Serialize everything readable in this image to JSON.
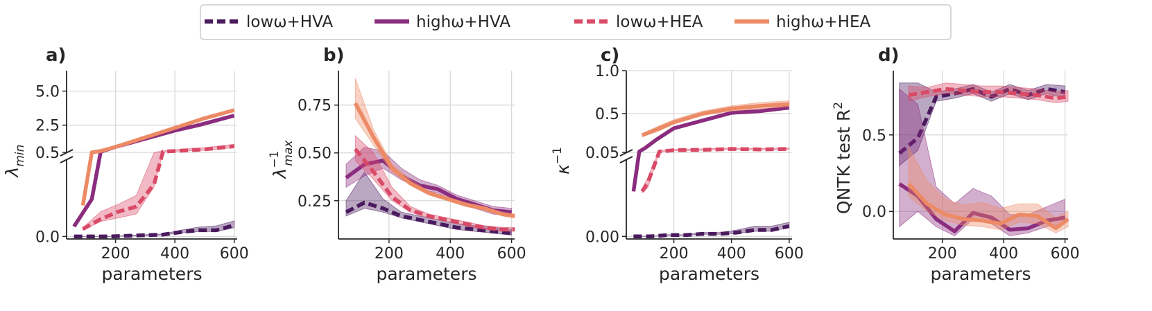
{
  "chart_data": {
    "type": "line",
    "legend": {
      "position": "top-center",
      "entries": [
        {
          "key": "lowHVA",
          "label": "lowω+HVA",
          "color": "#4a1a5e",
          "dashed": true
        },
        {
          "key": "highHVA",
          "label": "highω+HVA",
          "color": "#8b2c7e",
          "dashed": false
        },
        {
          "key": "lowHEA",
          "label": "lowω+HEA",
          "color": "#d94a67",
          "dashed": true
        },
        {
          "key": "highHEA",
          "label": "highω+HEA",
          "color": "#ec8a65",
          "dashed": false
        }
      ]
    },
    "panels": [
      {
        "id": "a",
        "panel_label": "a)",
        "xlabel": "parameters",
        "ylabel": "λ_min",
        "ylabel_main": "λ",
        "ylabel_sub": "min",
        "xlim": [
          35,
          610
        ],
        "xticks": [
          "200",
          "400",
          "600"
        ],
        "xtick_values": [
          200,
          400,
          600
        ],
        "broken_axis": true,
        "upper": {
          "ylim": [
            0.5,
            6.5
          ],
          "ytick_values": [
            2.5,
            5.0
          ],
          "yticks": [
            "2.5",
            "5.0"
          ]
        },
        "lower": {
          "ylim": [
            -0.02,
            0.62
          ],
          "ytick_values": [
            0.0,
            0.5
          ],
          "yticks": [
            "0.0",
            "0.5"
          ]
        },
        "series": [
          {
            "key": "lowHVA",
            "x": [
              60,
              120,
              180,
              240,
              300,
              360,
              420,
              480,
              540,
              600
            ],
            "y": [
              0.0,
              0.0,
              0.0,
              0.005,
              0.01,
              0.015,
              0.035,
              0.05,
              0.05,
              0.09
            ],
            "band_lo": [
              0.0,
              0.0,
              0.0,
              0.004,
              0.008,
              0.012,
              0.028,
              0.04,
              0.04,
              0.07
            ],
            "band_hi": [
              0.0,
              0.0,
              0.0,
              0.007,
              0.014,
              0.02,
              0.05,
              0.075,
              0.085,
              0.125
            ]
          },
          {
            "key": "highHVA",
            "x": [
              60,
              120,
              150,
              200,
              300,
              400,
              480,
              600
            ],
            "y": [
              0.08,
              0.3,
              0.55,
              0.9,
              1.5,
              2.1,
              2.5,
              3.2
            ]
          },
          {
            "key": "lowHEA",
            "x": [
              90,
              150,
              210,
              270,
              330,
              360,
              400,
              500,
              600
            ],
            "y": [
              0.06,
              0.14,
              0.2,
              0.24,
              0.42,
              0.55,
              0.6,
              0.72,
              0.95
            ],
            "band_lo": [
              0.05,
              0.12,
              0.15,
              0.18,
              0.4,
              0.52,
              0.58,
              0.66,
              0.85
            ],
            "band_hi": [
              0.07,
              0.2,
              0.26,
              0.33,
              0.5,
              0.6,
              0.7,
              0.85,
              1.1
            ]
          },
          {
            "key": "highHEA",
            "x": [
              90,
              120,
              150,
              200,
              300,
              400,
              500,
              600
            ],
            "y": [
              0.25,
              0.5,
              0.6,
              0.9,
              1.6,
              2.3,
              3.0,
              3.6
            ]
          }
        ]
      },
      {
        "id": "b",
        "panel_label": "b)",
        "xlabel": "parameters",
        "ylabel": "λ_max^-1",
        "ylabel_main": "λ",
        "ylabel_sup": "−1",
        "ylabel_sub": "max",
        "xlim": [
          35,
          610
        ],
        "xticks": [
          "200",
          "400",
          "600"
        ],
        "xtick_values": [
          200,
          400,
          600
        ],
        "ylim": [
          0.05,
          0.93
        ],
        "ytick_values": [
          0.25,
          0.5,
          0.75
        ],
        "yticks": [
          "0.25",
          "0.50",
          "0.75"
        ],
        "series": [
          {
            "key": "lowHVA",
            "x": [
              60,
              120,
              180,
              240,
              300,
              360,
              420,
              480,
              540,
              600
            ],
            "y": [
              0.19,
              0.24,
              0.21,
              0.17,
              0.15,
              0.13,
              0.11,
              0.1,
              0.09,
              0.08
            ],
            "band_lo": [
              0.17,
              0.21,
              0.19,
              0.16,
              0.14,
              0.12,
              0.1,
              0.09,
              0.08,
              0.07
            ],
            "band_hi": [
              0.25,
              0.4,
              0.26,
              0.19,
              0.17,
              0.15,
              0.13,
              0.12,
              0.11,
              0.1
            ]
          },
          {
            "key": "highHVA",
            "x": [
              60,
              120,
              180,
              240,
              300,
              360,
              420,
              480,
              540,
              600
            ],
            "y": [
              0.37,
              0.44,
              0.46,
              0.38,
              0.33,
              0.31,
              0.26,
              0.23,
              0.2,
              0.19
            ],
            "band_lo": [
              0.32,
              0.38,
              0.42,
              0.36,
              0.31,
              0.29,
              0.24,
              0.21,
              0.18,
              0.17
            ],
            "band_hi": [
              0.44,
              0.53,
              0.51,
              0.42,
              0.36,
              0.33,
              0.28,
              0.25,
              0.22,
              0.21
            ]
          },
          {
            "key": "lowHEA",
            "x": [
              90,
              150,
              210,
              270,
              330,
              390,
              450,
              510,
              570,
              610
            ],
            "y": [
              0.52,
              0.4,
              0.27,
              0.2,
              0.17,
              0.15,
              0.13,
              0.11,
              0.1,
              0.1
            ],
            "band_lo": [
              0.46,
              0.36,
              0.25,
              0.19,
              0.16,
              0.14,
              0.12,
              0.1,
              0.09,
              0.09
            ],
            "band_hi": [
              0.59,
              0.5,
              0.32,
              0.22,
              0.18,
              0.16,
              0.14,
              0.12,
              0.11,
              0.11
            ]
          },
          {
            "key": "highHEA",
            "x": [
              90,
              150,
              210,
              270,
              330,
              390,
              450,
              510,
              570,
              610
            ],
            "y": [
              0.76,
              0.58,
              0.42,
              0.34,
              0.29,
              0.26,
              0.23,
              0.21,
              0.18,
              0.17
            ],
            "band_lo": [
              0.68,
              0.54,
              0.4,
              0.33,
              0.28,
              0.25,
              0.22,
              0.2,
              0.17,
              0.16
            ],
            "band_hi": [
              0.89,
              0.62,
              0.44,
              0.36,
              0.3,
              0.27,
              0.24,
              0.22,
              0.19,
              0.18
            ]
          }
        ]
      },
      {
        "id": "c",
        "panel_label": "c)",
        "xlabel": "parameters",
        "ylabel": "κ^-1",
        "ylabel_main": "κ",
        "ylabel_sup": "−1",
        "xlim": [
          35,
          610
        ],
        "xticks": [
          "200",
          "400",
          "600"
        ],
        "xtick_values": [
          200,
          400,
          600
        ],
        "broken_axis": true,
        "upper": {
          "ylim": [
            0.05,
            1.0
          ],
          "ytick_values": [
            0.5,
            1.0
          ],
          "yticks": [
            "0.5",
            "1.0"
          ]
        },
        "lower": {
          "ylim": [
            -0.002,
            0.06
          ],
          "ytick_values": [
            0.0,
            0.05
          ],
          "yticks": [
            "0.00",
            "0.05"
          ]
        },
        "series": [
          {
            "key": "lowHVA",
            "x": [
              60,
              120,
              180,
              240,
              300,
              360,
              420,
              480,
              540,
              600
            ],
            "y": [
              0.0,
              0.0,
              0.001,
              0.001,
              0.002,
              0.002,
              0.003,
              0.005,
              0.005,
              0.008
            ],
            "band_lo": [
              0.0,
              0.0,
              0.0008,
              0.0008,
              0.0016,
              0.0016,
              0.0025,
              0.004,
              0.004,
              0.007
            ],
            "band_hi": [
              0.0,
              0.0,
              0.0013,
              0.0013,
              0.003,
              0.003,
              0.005,
              0.008,
              0.008,
              0.011
            ]
          },
          {
            "key": "highHVA",
            "x": [
              60,
              80,
              100,
              140,
              200,
              300,
              400,
              500,
              600
            ],
            "y": [
              0.035,
              0.06,
              0.1,
              0.2,
              0.33,
              0.42,
              0.51,
              0.53,
              0.57
            ]
          },
          {
            "key": "lowHEA",
            "x": [
              90,
              110,
              150,
              200,
              300,
              400,
              500,
              600
            ],
            "y": [
              0.035,
              0.042,
              0.06,
              0.075,
              0.08,
              0.09,
              0.085,
              0.09
            ],
            "band_lo": [
              0.034,
              0.038,
              0.055,
              0.07,
              0.075,
              0.085,
              0.08,
              0.085
            ],
            "band_hi": [
              0.037,
              0.046,
              0.075,
              0.085,
              0.09,
              0.1,
              0.095,
              0.1
            ]
          },
          {
            "key": "highHEA",
            "x": [
              90,
              150,
              200,
              300,
              400,
              500,
              600
            ],
            "y": [
              0.25,
              0.33,
              0.4,
              0.5,
              0.56,
              0.59,
              0.61
            ],
            "band_lo": [
              0.23,
              0.3,
              0.38,
              0.48,
              0.53,
              0.56,
              0.58
            ],
            "band_hi": [
              0.27,
              0.36,
              0.43,
              0.53,
              0.59,
              0.63,
              0.65
            ]
          }
        ]
      },
      {
        "id": "d",
        "panel_label": "d)",
        "xlabel": "parameters",
        "ylabel": "QNTK test R^2",
        "ylabel_main": "QNTK test R",
        "ylabel_sup": "2",
        "xlim": [
          40,
          610
        ],
        "xticks": [
          "200",
          "400",
          "600"
        ],
        "xtick_values": [
          200,
          400,
          600
        ],
        "ylim": [
          -0.18,
          0.92
        ],
        "ytick_values": [
          0.0,
          0.5
        ],
        "yticks": [
          "0.0",
          "0.5"
        ],
        "series": [
          {
            "key": "lowHVA",
            "x": [
              60,
              120,
              180,
              240,
              300,
              360,
              420,
              480,
              540,
              600
            ],
            "y": [
              0.38,
              0.48,
              0.75,
              0.77,
              0.8,
              0.75,
              0.8,
              0.76,
              0.8,
              0.78
            ],
            "band_lo": [
              0.3,
              0.4,
              0.72,
              0.74,
              0.77,
              0.72,
              0.77,
              0.73,
              0.77,
              0.74
            ],
            "band_hi": [
              0.84,
              0.84,
              0.78,
              0.8,
              0.83,
              0.78,
              0.83,
              0.79,
              0.83,
              0.82
            ]
          },
          {
            "key": "highHVA",
            "x": [
              60,
              120,
              180,
              240,
              300,
              360,
              420,
              480,
              540,
              600
            ],
            "y": [
              0.18,
              0.1,
              -0.05,
              -0.13,
              -0.01,
              -0.04,
              -0.12,
              -0.11,
              -0.06,
              -0.04
            ],
            "band_lo": [
              -0.1,
              0.0,
              -0.1,
              -0.16,
              -0.05,
              -0.08,
              -0.16,
              -0.14,
              -0.1,
              -0.08
            ],
            "band_hi": [
              0.8,
              0.7,
              0.16,
              0.05,
              0.15,
              0.1,
              -0.02,
              -0.02,
              0.03,
              0.08
            ]
          },
          {
            "key": "lowHEA",
            "x": [
              90,
              150,
              210,
              270,
              330,
              390,
              450,
              510,
              570,
              610
            ],
            "y": [
              0.76,
              0.78,
              0.8,
              0.79,
              0.78,
              0.78,
              0.77,
              0.76,
              0.74,
              0.75
            ],
            "band_lo": [
              0.72,
              0.75,
              0.77,
              0.76,
              0.75,
              0.75,
              0.74,
              0.73,
              0.71,
              0.72
            ],
            "band_hi": [
              0.82,
              0.81,
              0.84,
              0.83,
              0.82,
              0.82,
              0.81,
              0.8,
              0.78,
              0.79
            ]
          },
          {
            "key": "highHEA",
            "x": [
              90,
              150,
              210,
              270,
              330,
              390,
              450,
              510,
              570,
              610
            ],
            "y": [
              0.18,
              0.05,
              -0.02,
              -0.05,
              -0.06,
              -0.08,
              -0.02,
              -0.03,
              -0.11,
              -0.05
            ],
            "band_lo": [
              0.1,
              0.0,
              -0.06,
              -0.09,
              -0.1,
              -0.12,
              -0.07,
              -0.08,
              -0.14,
              -0.1
            ],
            "band_hi": [
              0.42,
              0.2,
              0.08,
              0.04,
              0.06,
              0.02,
              0.05,
              0.05,
              -0.04,
              0.0
            ]
          }
        ]
      }
    ]
  }
}
